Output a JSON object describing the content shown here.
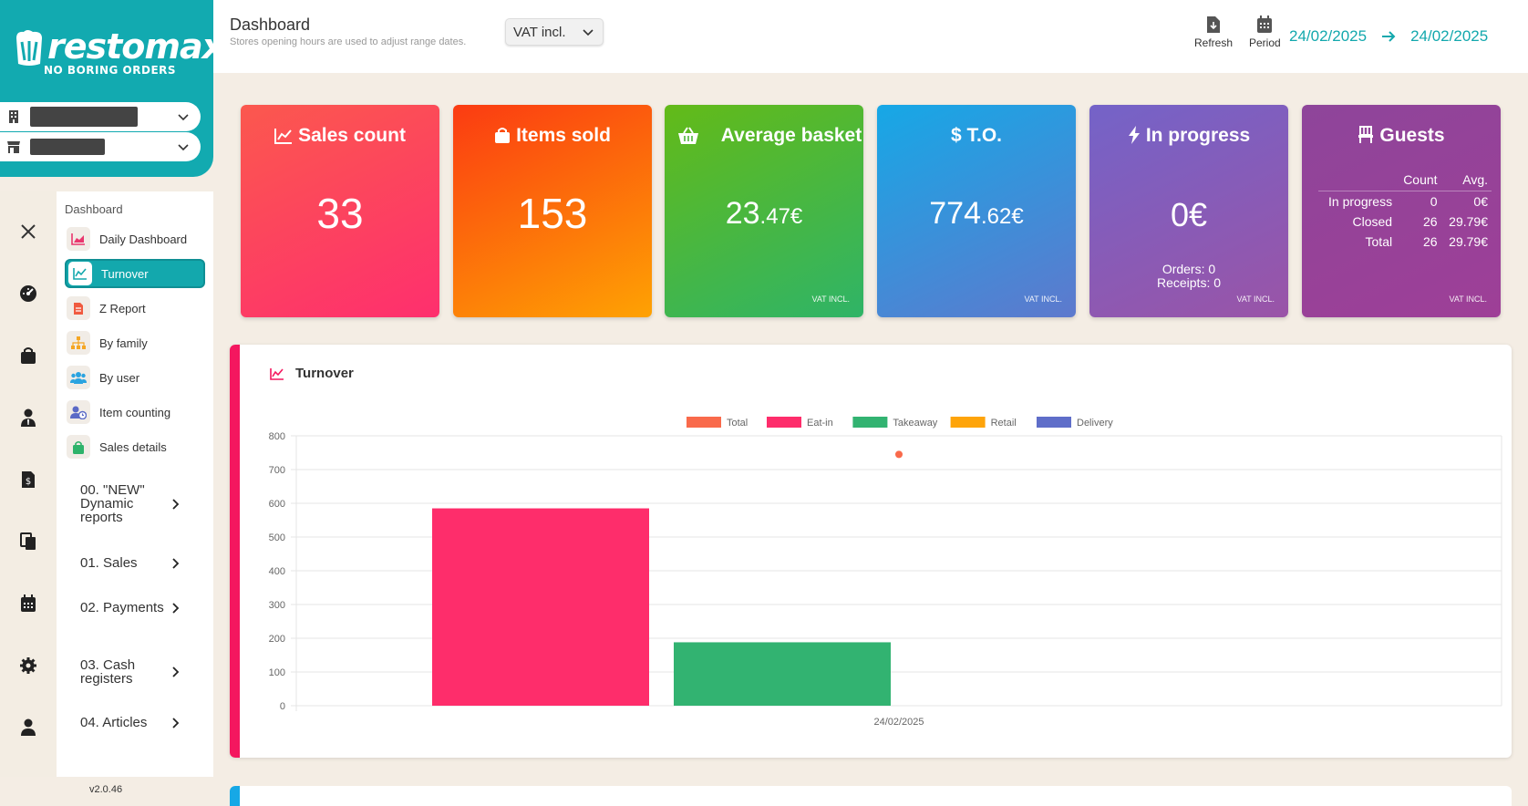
{
  "brand": {
    "logo_text": "restomax",
    "tagline": "NO BORING ORDERS"
  },
  "header": {
    "title": "Dashboard",
    "subtitle": "Stores opening hours are used to adjust range dates.",
    "vat_select": "VAT incl.",
    "refresh_label": "Refresh",
    "period_label": "Period",
    "date_from": "24/02/2025",
    "date_to": "24/02/2025"
  },
  "nav": {
    "heading": "Dashboard",
    "items": [
      {
        "label": "Daily Dashboard",
        "icon": "area-chart-icon",
        "active": false
      },
      {
        "label": "Turnover",
        "icon": "line-chart-icon",
        "active": true
      },
      {
        "label": "Z Report",
        "icon": "document-icon",
        "active": false
      },
      {
        "label": "By family",
        "icon": "sitemap-icon",
        "active": false
      },
      {
        "label": "By user",
        "icon": "users-icon",
        "active": false
      },
      {
        "label": "Item counting",
        "icon": "user-clock-icon",
        "active": false
      },
      {
        "label": "Sales details",
        "icon": "bag-icon",
        "active": false
      }
    ],
    "groups": [
      {
        "label": "00. \"NEW\" Dynamic reports"
      },
      {
        "label": "01. Sales"
      },
      {
        "label": "02. Payments"
      },
      {
        "label": "03. Cash registers"
      },
      {
        "label": "04. Articles"
      }
    ],
    "version": "v2.0.46"
  },
  "kpis": {
    "sales_count": {
      "title": "Sales count",
      "value": "33"
    },
    "items_sold": {
      "title": "Items sold",
      "value": "153"
    },
    "average_basket": {
      "title": "Average basket",
      "value_int": "23",
      "value_dec": ".47€",
      "vat": "VAT INCL."
    },
    "turnover": {
      "title": "$ T.O.",
      "value_int": "774",
      "value_dec": ".62€",
      "vat": "VAT INCL."
    },
    "in_progress": {
      "title": "In progress",
      "value": "0€",
      "orders": "Orders: 0",
      "receipts": "Receipts: 0",
      "vat": "VAT INCL."
    },
    "guests": {
      "title": "Guests",
      "col_count": "Count",
      "col_avg": "Avg.",
      "rows": [
        {
          "label": "In progress",
          "count": "0",
          "avg": "0€"
        },
        {
          "label": "Closed",
          "count": "26",
          "avg": "29.79€"
        },
        {
          "label": "Total",
          "count": "26",
          "avg": "29.79€"
        }
      ],
      "vat": "VAT INCL."
    }
  },
  "turnover_panel": {
    "title": "Turnover"
  },
  "colors": {
    "accent": "#13a8ad",
    "total": "#f96a4b",
    "eat_in": "#fe2d6b",
    "takeaway": "#32b371",
    "retail": "#fea40a",
    "delivery": "#5f6ec9"
  },
  "chart_data": {
    "type": "bar",
    "categories": [
      "24/02/2025"
    ],
    "series": [
      {
        "name": "Total",
        "values": [
          774.62
        ],
        "color": "#f96a4b",
        "render": "point"
      },
      {
        "name": "Eat-in",
        "values": [
          585
        ],
        "color": "#fe2d6b"
      },
      {
        "name": "Takeaway",
        "values": [
          188
        ],
        "color": "#32b371"
      },
      {
        "name": "Retail",
        "values": [
          0
        ],
        "color": "#fea40a"
      },
      {
        "name": "Delivery",
        "values": [
          0
        ],
        "color": "#5f6ec9"
      }
    ],
    "yticks": [
      0,
      100,
      200,
      300,
      400,
      500,
      600,
      700,
      800
    ],
    "ylim": [
      0,
      800
    ],
    "legend": "top-center",
    "grid": true
  }
}
